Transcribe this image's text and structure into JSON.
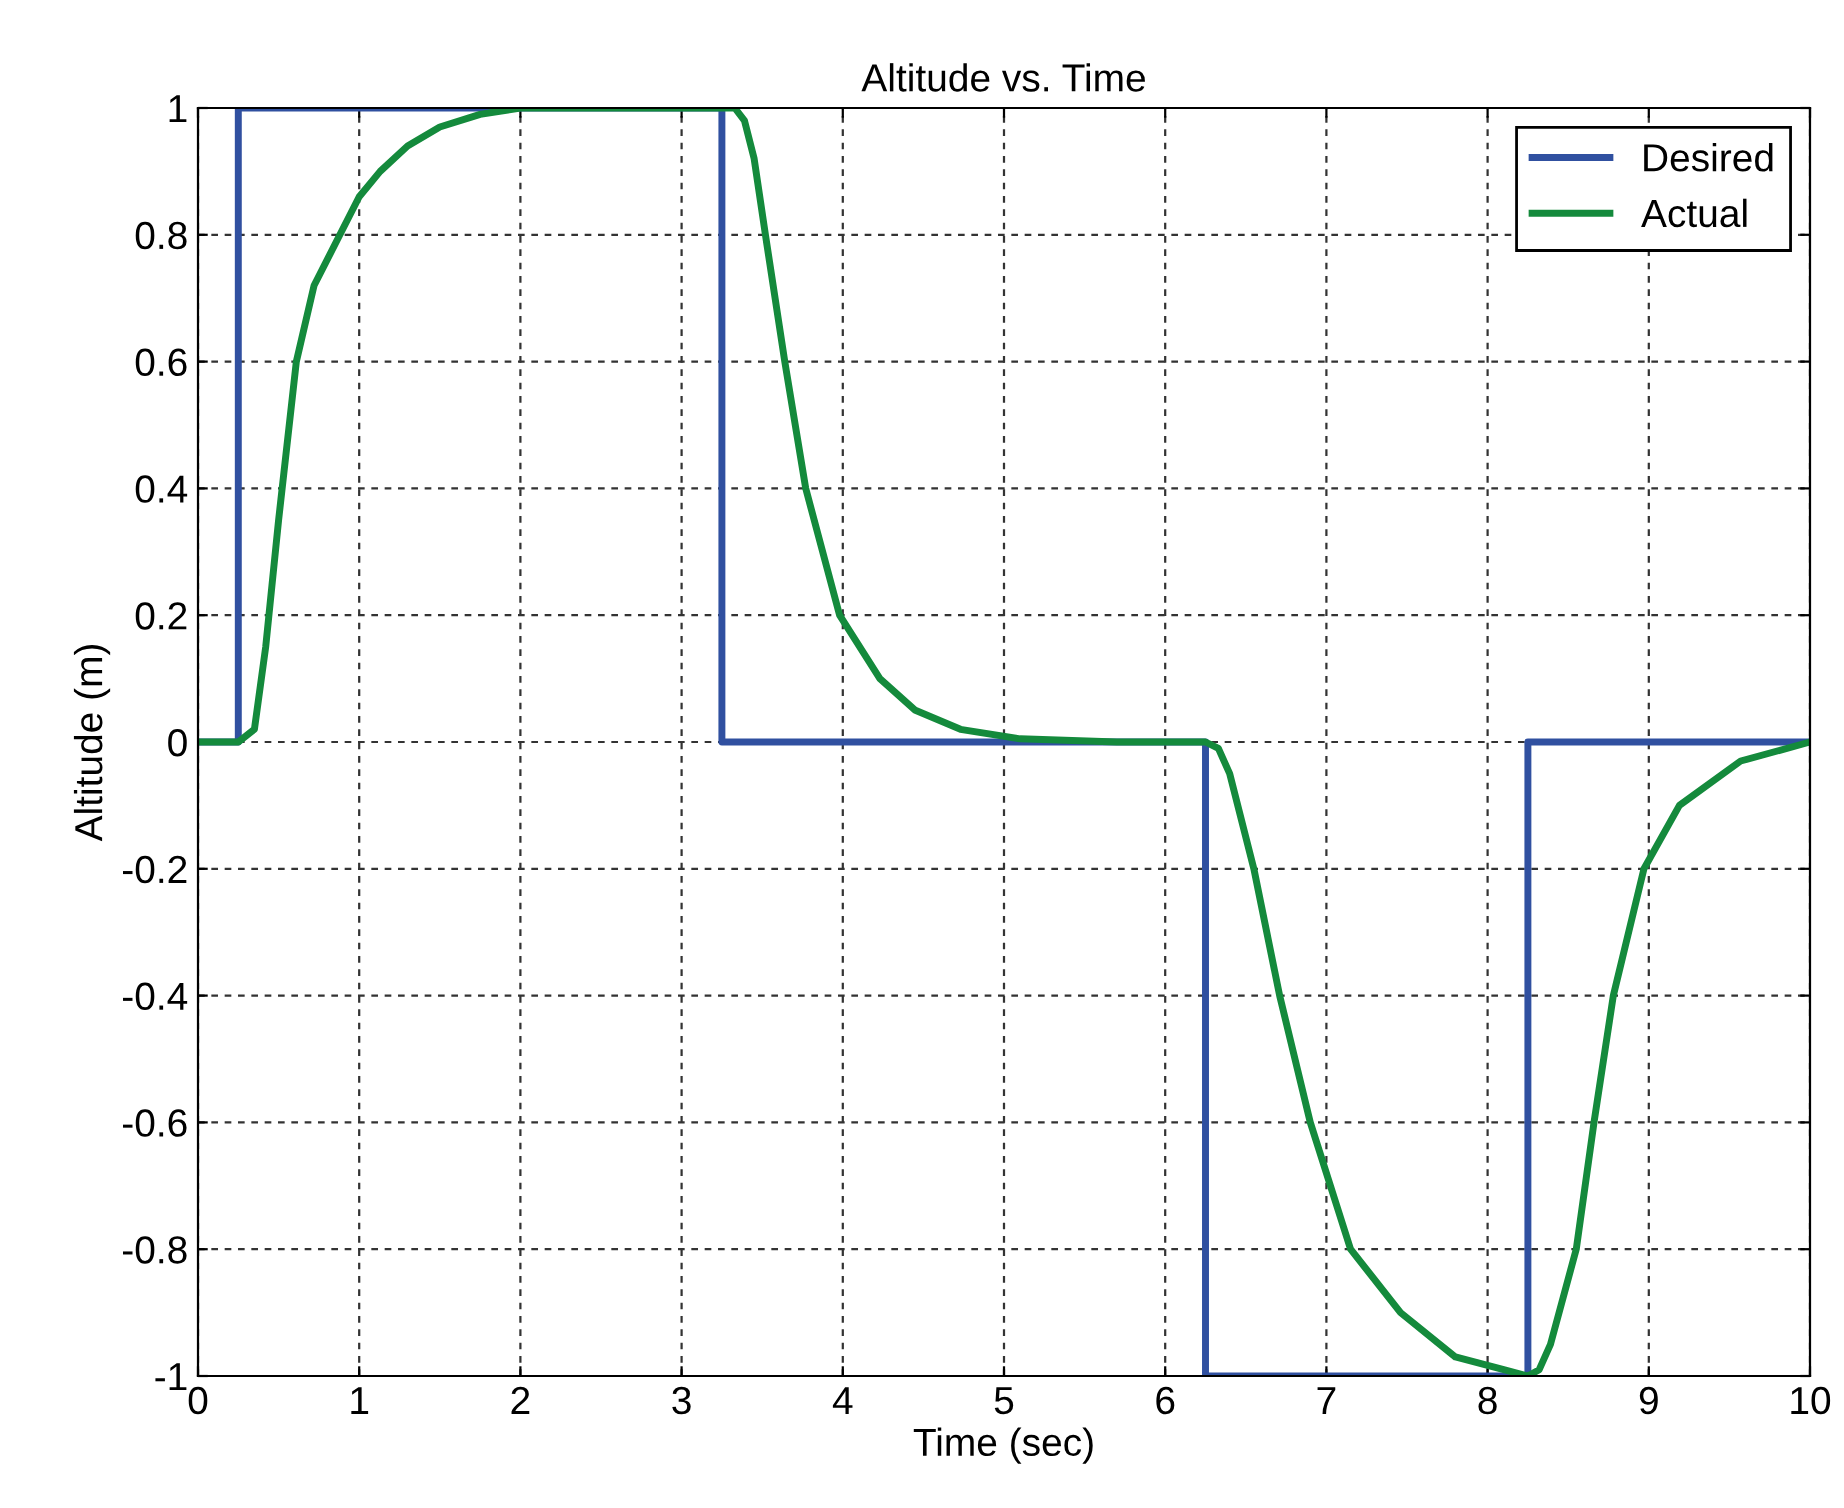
{
  "chart_data": {
    "type": "line",
    "title": "Altitude vs. Time",
    "xlabel": "Time (sec)",
    "ylabel": "Altitude (m)",
    "xlim": [
      0,
      10
    ],
    "ylim": [
      -1,
      1
    ],
    "xticks": [
      0,
      1,
      2,
      3,
      4,
      5,
      6,
      7,
      8,
      9,
      10
    ],
    "yticks": [
      -1,
      -0.8,
      -0.6,
      -0.4,
      -0.2,
      0,
      0.2,
      0.4,
      0.6,
      0.8,
      1
    ],
    "grid": true,
    "legend": "top right",
    "line_style": "solid",
    "series": [
      {
        "name": "Desired",
        "color": "#3050a0",
        "x": [
          0,
          0.25,
          0.25,
          3.25,
          3.25,
          6.25,
          6.25,
          8.25,
          8.25,
          10
        ],
        "values": [
          0,
          0,
          1,
          1,
          0,
          0,
          -1,
          -1,
          0,
          0
        ]
      },
      {
        "name": "Actual",
        "color": "#148a3c",
        "x": [
          0,
          0.25,
          0.35,
          0.42,
          0.5,
          0.61,
          0.72,
          0.88,
          1.0,
          1.13,
          1.3,
          1.5,
          1.75,
          2.0,
          2.5,
          3.25,
          3.33,
          3.39,
          3.45,
          3.52,
          3.64,
          3.77,
          3.98,
          4.23,
          4.45,
          4.73,
          5.1,
          5.7,
          6.25,
          6.33,
          6.4,
          6.55,
          6.71,
          6.9,
          7.15,
          7.46,
          7.8,
          8.1,
          8.25,
          8.32,
          8.39,
          8.55,
          8.66,
          8.78,
          8.97,
          9.19,
          9.57,
          10
        ],
        "values": [
          0,
          0,
          0.02,
          0.15,
          0.35,
          0.6,
          0.72,
          0.8,
          0.86,
          0.9,
          0.94,
          0.97,
          0.99,
          1,
          1,
          1,
          1,
          0.98,
          0.92,
          0.8,
          0.6,
          0.4,
          0.2,
          0.1,
          0.05,
          0.02,
          0.005,
          0,
          0,
          -0.01,
          -0.05,
          -0.2,
          -0.4,
          -0.6,
          -0.8,
          -0.9,
          -0.97,
          -0.99,
          -1,
          -0.99,
          -0.95,
          -0.8,
          -0.6,
          -0.4,
          -0.2,
          -0.1,
          -0.03,
          0
        ]
      }
    ]
  }
}
